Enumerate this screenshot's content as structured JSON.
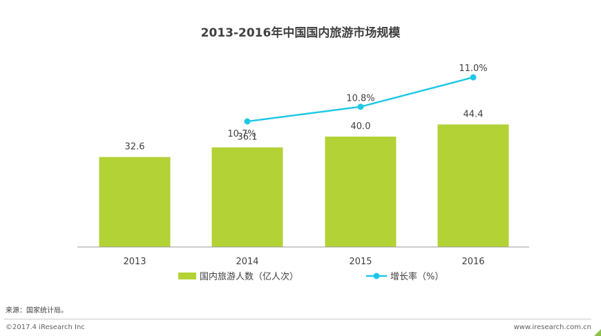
{
  "chart_data": {
    "type": "bar",
    "title": "2013-2016年中国国内旅游市场规模",
    "categories": [
      "2013",
      "2014",
      "2015",
      "2016"
    ],
    "bar_series": {
      "name": "国内旅游人数（亿人次）",
      "values": [
        32.6,
        36.1,
        40.0,
        44.4
      ],
      "labels": [
        "32.6",
        "36.1",
        "40.0",
        "44.4"
      ],
      "color": "#b2d235"
    },
    "line_series": {
      "name": "增长率（%）",
      "x": [
        "2014",
        "2015",
        "2016"
      ],
      "values": [
        10.7,
        10.8,
        11.0
      ],
      "labels": [
        "10.7%",
        "10.8%",
        "11.0%"
      ],
      "color": "#1ec8e6"
    },
    "legend_position": "bottom",
    "grid": false
  },
  "footer": {
    "source": "来源：国家统计局。",
    "copyright": "©2017.4 iResearch Inc",
    "website": "www.iresearch.com.cn"
  }
}
